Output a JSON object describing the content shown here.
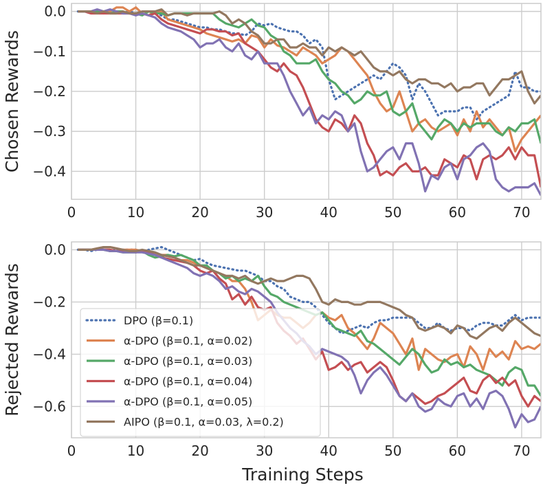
{
  "chart_data": [
    {
      "type": "line",
      "ylabel": "Chosen Rewards",
      "xlabel": "",
      "xlim": [
        0,
        73
      ],
      "ylim": [
        -0.47,
        0.02
      ],
      "xticks": [
        0,
        10,
        20,
        30,
        40,
        50,
        60,
        70
      ],
      "yticks": [
        0.0,
        -0.1,
        -0.2,
        -0.3,
        -0.4
      ],
      "ytick_labels": [
        "0.0",
        "−0.1",
        "−0.2",
        "−0.3",
        "−0.4"
      ],
      "grid": true,
      "series": [
        {
          "name": "DPO (β=0.1)",
          "color": "#4c72b0",
          "dash": "dotted",
          "x_start": 1,
          "values": [
            0,
            0,
            0,
            0,
            0,
            0,
            0,
            -0.002,
            0,
            -0.005,
            -0.01,
            0,
            -0.005,
            -0.01,
            -0.02,
            -0.02,
            -0.025,
            -0.03,
            -0.035,
            -0.04,
            -0.04,
            -0.045,
            -0.045,
            -0.05,
            -0.055,
            -0.055,
            -0.06,
            -0.05,
            -0.03,
            -0.035,
            -0.03,
            -0.04,
            -0.045,
            -0.05,
            -0.05,
            -0.06,
            -0.08,
            -0.07,
            -0.09,
            -0.17,
            -0.22,
            -0.21,
            -0.2,
            -0.19,
            -0.18,
            -0.17,
            -0.16,
            -0.17,
            -0.15,
            -0.13,
            -0.14,
            -0.16,
            -0.22,
            -0.18,
            -0.2,
            -0.23,
            -0.26,
            -0.25,
            -0.25,
            -0.25,
            -0.24,
            -0.24,
            -0.27,
            -0.25,
            -0.24,
            -0.23,
            -0.22,
            -0.21,
            -0.15,
            -0.19,
            -0.19,
            -0.2,
            -0.2
          ]
        },
        {
          "name": "α-DPO (β=0.1, α=0.02)",
          "color": "#dd8452",
          "dash": "solid",
          "x_start": 1,
          "values": [
            0,
            0,
            0,
            0,
            -0.005,
            0,
            0.01,
            0.01,
            0,
            0.01,
            -0.005,
            -0.01,
            0,
            0,
            -0.02,
            -0.025,
            -0.03,
            -0.035,
            -0.04,
            -0.045,
            -0.055,
            -0.06,
            -0.065,
            -0.07,
            -0.075,
            -0.07,
            -0.08,
            -0.06,
            -0.065,
            -0.09,
            -0.07,
            -0.085,
            -0.09,
            -0.1,
            -0.11,
            -0.09,
            -0.1,
            -0.11,
            -0.13,
            -0.12,
            -0.11,
            -0.09,
            -0.1,
            -0.12,
            -0.14,
            -0.16,
            -0.2,
            -0.23,
            -0.25,
            -0.24,
            -0.2,
            -0.25,
            -0.3,
            -0.28,
            -0.27,
            -0.29,
            -0.3,
            -0.29,
            -0.28,
            -0.31,
            -0.27,
            -0.3,
            -0.25,
            -0.29,
            -0.27,
            -0.29,
            -0.31,
            -0.29,
            -0.35,
            -0.32,
            -0.3,
            -0.28,
            -0.26
          ]
        },
        {
          "name": "α-DPO (β=0.1, α=0.03)",
          "color": "#55a868",
          "dash": "solid",
          "x_start": 1,
          "values": [
            0,
            0,
            0,
            0,
            0,
            -0.005,
            0,
            0,
            -0.005,
            -0.005,
            -0.01,
            0,
            -0.005,
            -0.005,
            -0.01,
            -0.005,
            -0.005,
            -0.005,
            -0.005,
            -0.005,
            -0.005,
            -0.005,
            -0.02,
            -0.03,
            -0.035,
            -0.04,
            -0.03,
            -0.02,
            -0.035,
            -0.04,
            -0.06,
            -0.07,
            -0.1,
            -0.11,
            -0.13,
            -0.13,
            -0.13,
            -0.12,
            -0.15,
            -0.17,
            -0.18,
            -0.2,
            -0.21,
            -0.23,
            -0.22,
            -0.2,
            -0.21,
            -0.21,
            -0.2,
            -0.25,
            -0.26,
            -0.25,
            -0.23,
            -0.28,
            -0.3,
            -0.32,
            -0.29,
            -0.27,
            -0.28,
            -0.3,
            -0.28,
            -0.29,
            -0.28,
            -0.28,
            -0.28,
            -0.3,
            -0.31,
            -0.29,
            -0.3,
            -0.28,
            -0.28,
            -0.27,
            -0.33
          ]
        },
        {
          "name": "α-DPO (β=0.1, α=0.04)",
          "color": "#c44e52",
          "dash": "solid",
          "x_start": 1,
          "values": [
            0,
            0,
            -0.005,
            -0.005,
            -0.005,
            -0.005,
            -0.005,
            -0.005,
            -0.005,
            -0.005,
            -0.005,
            -0.01,
            -0.005,
            -0.02,
            -0.03,
            -0.035,
            -0.04,
            -0.045,
            -0.05,
            -0.055,
            -0.045,
            -0.045,
            -0.05,
            -0.05,
            -0.06,
            -0.055,
            -0.08,
            -0.09,
            -0.1,
            -0.12,
            -0.14,
            -0.15,
            -0.13,
            -0.15,
            -0.16,
            -0.19,
            -0.23,
            -0.27,
            -0.29,
            -0.3,
            -0.27,
            -0.28,
            -0.3,
            -0.26,
            -0.28,
            -0.33,
            -0.36,
            -0.41,
            -0.4,
            -0.41,
            -0.39,
            -0.38,
            -0.4,
            -0.4,
            -0.39,
            -0.41,
            -0.41,
            -0.37,
            -0.38,
            -0.39,
            -0.36,
            -0.37,
            -0.42,
            -0.37,
            -0.36,
            -0.37,
            -0.36,
            -0.34,
            -0.37,
            -0.34,
            -0.36,
            -0.36,
            -0.44
          ]
        },
        {
          "name": "α-DPO (β=0.1, α=0.05)",
          "color": "#8172b3",
          "dash": "solid",
          "x_start": 1,
          "values": [
            0,
            0,
            0,
            0.005,
            0,
            0.005,
            0,
            -0.005,
            -0.005,
            -0.01,
            -0.005,
            -0.01,
            -0.015,
            -0.03,
            -0.04,
            -0.045,
            -0.05,
            -0.06,
            -0.07,
            -0.09,
            -0.08,
            -0.08,
            -0.07,
            -0.09,
            -0.1,
            -0.08,
            -0.11,
            -0.12,
            -0.1,
            -0.13,
            -0.13,
            -0.13,
            -0.16,
            -0.2,
            -0.23,
            -0.26,
            -0.24,
            -0.28,
            -0.26,
            -0.27,
            -0.25,
            -0.26,
            -0.3,
            -0.28,
            -0.35,
            -0.4,
            -0.39,
            -0.37,
            -0.35,
            -0.34,
            -0.37,
            -0.33,
            -0.33,
            -0.38,
            -0.45,
            -0.41,
            -0.42,
            -0.39,
            -0.38,
            -0.42,
            -0.37,
            -0.36,
            -0.34,
            -0.33,
            -0.35,
            -0.42,
            -0.44,
            -0.45,
            -0.44,
            -0.44,
            -0.44,
            -0.43,
            -0.46
          ]
        },
        {
          "name": "AIPO (β=0.1, α=0.03, λ=0.2)",
          "color": "#937860",
          "dash": "solid",
          "x_start": 1,
          "values": [
            0,
            0,
            0,
            -0.005,
            0,
            -0.005,
            -0.005,
            0,
            -0.005,
            -0.005,
            0,
            0,
            0,
            0.005,
            -0.01,
            -0.005,
            -0.005,
            -0.01,
            -0.005,
            -0.005,
            -0.005,
            -0.005,
            0,
            -0.01,
            -0.03,
            -0.02,
            -0.03,
            -0.05,
            -0.06,
            -0.08,
            -0.08,
            -0.07,
            -0.07,
            -0.09,
            -0.09,
            -0.08,
            -0.09,
            -0.09,
            -0.11,
            -0.09,
            -0.1,
            -0.09,
            -0.1,
            -0.11,
            -0.1,
            -0.12,
            -0.14,
            -0.15,
            -0.15,
            -0.16,
            -0.15,
            -0.17,
            -0.18,
            -0.17,
            -0.17,
            -0.18,
            -0.18,
            -0.19,
            -0.18,
            -0.2,
            -0.19,
            -0.19,
            -0.18,
            -0.18,
            -0.21,
            -0.19,
            -0.17,
            -0.17,
            -0.16,
            -0.15,
            -0.2,
            -0.23,
            -0.21
          ]
        }
      ]
    },
    {
      "type": "line",
      "ylabel": "Rejected Rewards",
      "xlabel": "Training Steps",
      "xlim": [
        0,
        73
      ],
      "ylim": [
        -0.72,
        0.03
      ],
      "xticks": [
        0,
        10,
        20,
        30,
        40,
        50,
        60,
        70
      ],
      "yticks": [
        0.0,
        -0.2,
        -0.4,
        -0.6
      ],
      "ytick_labels": [
        "0.0",
        "−0.2",
        "−0.4",
        "−0.6"
      ],
      "grid": true,
      "legend": "lower-left",
      "series": [
        {
          "name": "DPO (β=0.1)",
          "color": "#4c72b0",
          "dash": "dotted",
          "x_start": 1,
          "values": [
            0,
            0,
            -0.005,
            0,
            0,
            -0.005,
            0,
            0,
            0,
            0,
            -0.01,
            0,
            0.005,
            0.01,
            0,
            -0.01,
            -0.02,
            -0.03,
            -0.04,
            -0.035,
            -0.05,
            -0.06,
            -0.065,
            -0.07,
            -0.075,
            -0.08,
            -0.08,
            -0.09,
            -0.1,
            -0.12,
            -0.12,
            -0.14,
            -0.15,
            -0.18,
            -0.19,
            -0.2,
            -0.2,
            -0.22,
            -0.25,
            -0.28,
            -0.3,
            -0.32,
            -0.31,
            -0.3,
            -0.29,
            -0.3,
            -0.28,
            -0.27,
            -0.27,
            -0.26,
            -0.26,
            -0.26,
            -0.26,
            -0.28,
            -0.3,
            -0.3,
            -0.28,
            -0.3,
            -0.31,
            -0.3,
            -0.3,
            -0.31,
            -0.29,
            -0.28,
            -0.28,
            -0.29,
            -0.29,
            -0.27,
            -0.25,
            -0.27,
            -0.26,
            -0.26,
            -0.26
          ]
        },
        {
          "name": "α-DPO (β=0.1, α=0.02)",
          "color": "#dd8452",
          "dash": "solid",
          "x_start": 1,
          "values": [
            0,
            0,
            0,
            0.005,
            0.01,
            0.01,
            0.005,
            0,
            0,
            0,
            -0.005,
            -0.01,
            -0.015,
            -0.02,
            -0.02,
            -0.03,
            -0.04,
            -0.04,
            -0.05,
            -0.06,
            -0.07,
            -0.08,
            -0.09,
            -0.1,
            -0.12,
            -0.12,
            -0.15,
            -0.2,
            -0.27,
            -0.25,
            -0.23,
            -0.25,
            -0.26,
            -0.26,
            -0.28,
            -0.3,
            -0.28,
            -0.25,
            -0.24,
            -0.26,
            -0.27,
            -0.25,
            -0.3,
            -0.32,
            -0.35,
            -0.38,
            -0.34,
            -0.28,
            -0.3,
            -0.32,
            -0.36,
            -0.4,
            -0.34,
            -0.46,
            -0.38,
            -0.4,
            -0.42,
            -0.43,
            -0.41,
            -0.4,
            -0.45,
            -0.37,
            -0.4,
            -0.46,
            -0.38,
            -0.41,
            -0.39,
            -0.42,
            -0.35,
            -0.38,
            -0.37,
            -0.38,
            -0.36
          ]
        },
        {
          "name": "α-DPO (β=0.1, α=0.03)",
          "color": "#55a868",
          "dash": "solid",
          "x_start": 1,
          "values": [
            0,
            0,
            0,
            0,
            0,
            -0.005,
            -0.005,
            -0.01,
            -0.01,
            -0.01,
            -0.005,
            -0.02,
            -0.03,
            -0.025,
            -0.02,
            -0.025,
            -0.02,
            -0.03,
            -0.04,
            -0.06,
            -0.06,
            -0.08,
            -0.09,
            -0.11,
            -0.1,
            -0.12,
            -0.11,
            -0.12,
            -0.1,
            -0.14,
            -0.17,
            -0.18,
            -0.2,
            -0.21,
            -0.22,
            -0.23,
            -0.24,
            -0.25,
            -0.24,
            -0.27,
            -0.3,
            -0.31,
            -0.32,
            -0.33,
            -0.31,
            -0.35,
            -0.36,
            -0.38,
            -0.4,
            -0.42,
            -0.44,
            -0.41,
            -0.38,
            -0.4,
            -0.44,
            -0.47,
            -0.46,
            -0.42,
            -0.44,
            -0.43,
            -0.45,
            -0.44,
            -0.46,
            -0.47,
            -0.48,
            -0.5,
            -0.52,
            -0.47,
            -0.45,
            -0.46,
            -0.52,
            -0.52,
            -0.56
          ]
        },
        {
          "name": "α-DPO (β=0.1, α=0.04)",
          "color": "#c44e52",
          "dash": "solid",
          "x_start": 1,
          "values": [
            0,
            0,
            0,
            0,
            0,
            0,
            -0.005,
            -0.005,
            -0.005,
            -0.01,
            -0.005,
            -0.01,
            -0.02,
            -0.03,
            -0.035,
            -0.04,
            -0.045,
            -0.05,
            -0.06,
            -0.08,
            -0.09,
            -0.08,
            -0.11,
            -0.13,
            -0.19,
            -0.17,
            -0.21,
            -0.18,
            -0.22,
            -0.23,
            -0.22,
            -0.28,
            -0.31,
            -0.33,
            -0.36,
            -0.34,
            -0.38,
            -0.42,
            -0.39,
            -0.46,
            -0.45,
            -0.43,
            -0.46,
            -0.44,
            -0.43,
            -0.47,
            -0.45,
            -0.43,
            -0.45,
            -0.5,
            -0.56,
            -0.58,
            -0.55,
            -0.57,
            -0.59,
            -0.58,
            -0.56,
            -0.55,
            -0.53,
            -0.51,
            -0.49,
            -0.54,
            -0.55,
            -0.5,
            -0.48,
            -0.51,
            -0.49,
            -0.52,
            -0.5,
            -0.56,
            -0.6,
            -0.56,
            -0.58
          ]
        },
        {
          "name": "α-DPO (β=0.1, α=0.05)",
          "color": "#8172b3",
          "dash": "solid",
          "x_start": 1,
          "values": [
            0,
            0,
            0,
            0,
            0,
            -0.005,
            -0.005,
            -0.01,
            -0.01,
            -0.01,
            -0.01,
            -0.015,
            -0.02,
            -0.03,
            -0.04,
            -0.05,
            -0.06,
            -0.07,
            -0.09,
            -0.1,
            -0.09,
            -0.1,
            -0.12,
            -0.15,
            -0.14,
            -0.16,
            -0.17,
            -0.15,
            -0.16,
            -0.18,
            -0.2,
            -0.24,
            -0.27,
            -0.3,
            -0.32,
            -0.35,
            -0.37,
            -0.4,
            -0.38,
            -0.39,
            -0.4,
            -0.41,
            -0.43,
            -0.48,
            -0.55,
            -0.5,
            -0.47,
            -0.45,
            -0.48,
            -0.52,
            -0.56,
            -0.58,
            -0.55,
            -0.6,
            -0.62,
            -0.61,
            -0.57,
            -0.59,
            -0.6,
            -0.56,
            -0.55,
            -0.6,
            -0.57,
            -0.61,
            -0.55,
            -0.54,
            -0.56,
            -0.61,
            -0.68,
            -0.63,
            -0.66,
            -0.65,
            -0.6
          ]
        },
        {
          "name": "AIPO (β=0.1, α=0.03, λ=0.2)",
          "color": "#937860",
          "dash": "solid",
          "x_start": 1,
          "values": [
            0,
            0,
            0,
            0.005,
            0.01,
            0.01,
            0.005,
            0,
            -0.005,
            -0.005,
            0,
            -0.005,
            -0.01,
            -0.02,
            -0.025,
            -0.03,
            -0.04,
            -0.05,
            -0.06,
            -0.06,
            -0.07,
            -0.08,
            -0.09,
            -0.1,
            -0.1,
            -0.11,
            -0.1,
            -0.12,
            -0.13,
            -0.12,
            -0.11,
            -0.12,
            -0.12,
            -0.11,
            -0.1,
            -0.1,
            -0.11,
            -0.15,
            -0.2,
            -0.21,
            -0.19,
            -0.2,
            -0.2,
            -0.21,
            -0.21,
            -0.2,
            -0.2,
            -0.2,
            -0.21,
            -0.22,
            -0.23,
            -0.25,
            -0.26,
            -0.3,
            -0.31,
            -0.3,
            -0.29,
            -0.3,
            -0.32,
            -0.29,
            -0.3,
            -0.33,
            -0.34,
            -0.32,
            -0.3,
            -0.29,
            -0.31,
            -0.28,
            -0.26,
            -0.28,
            -0.3,
            -0.32,
            -0.33
          ]
        }
      ]
    }
  ]
}
